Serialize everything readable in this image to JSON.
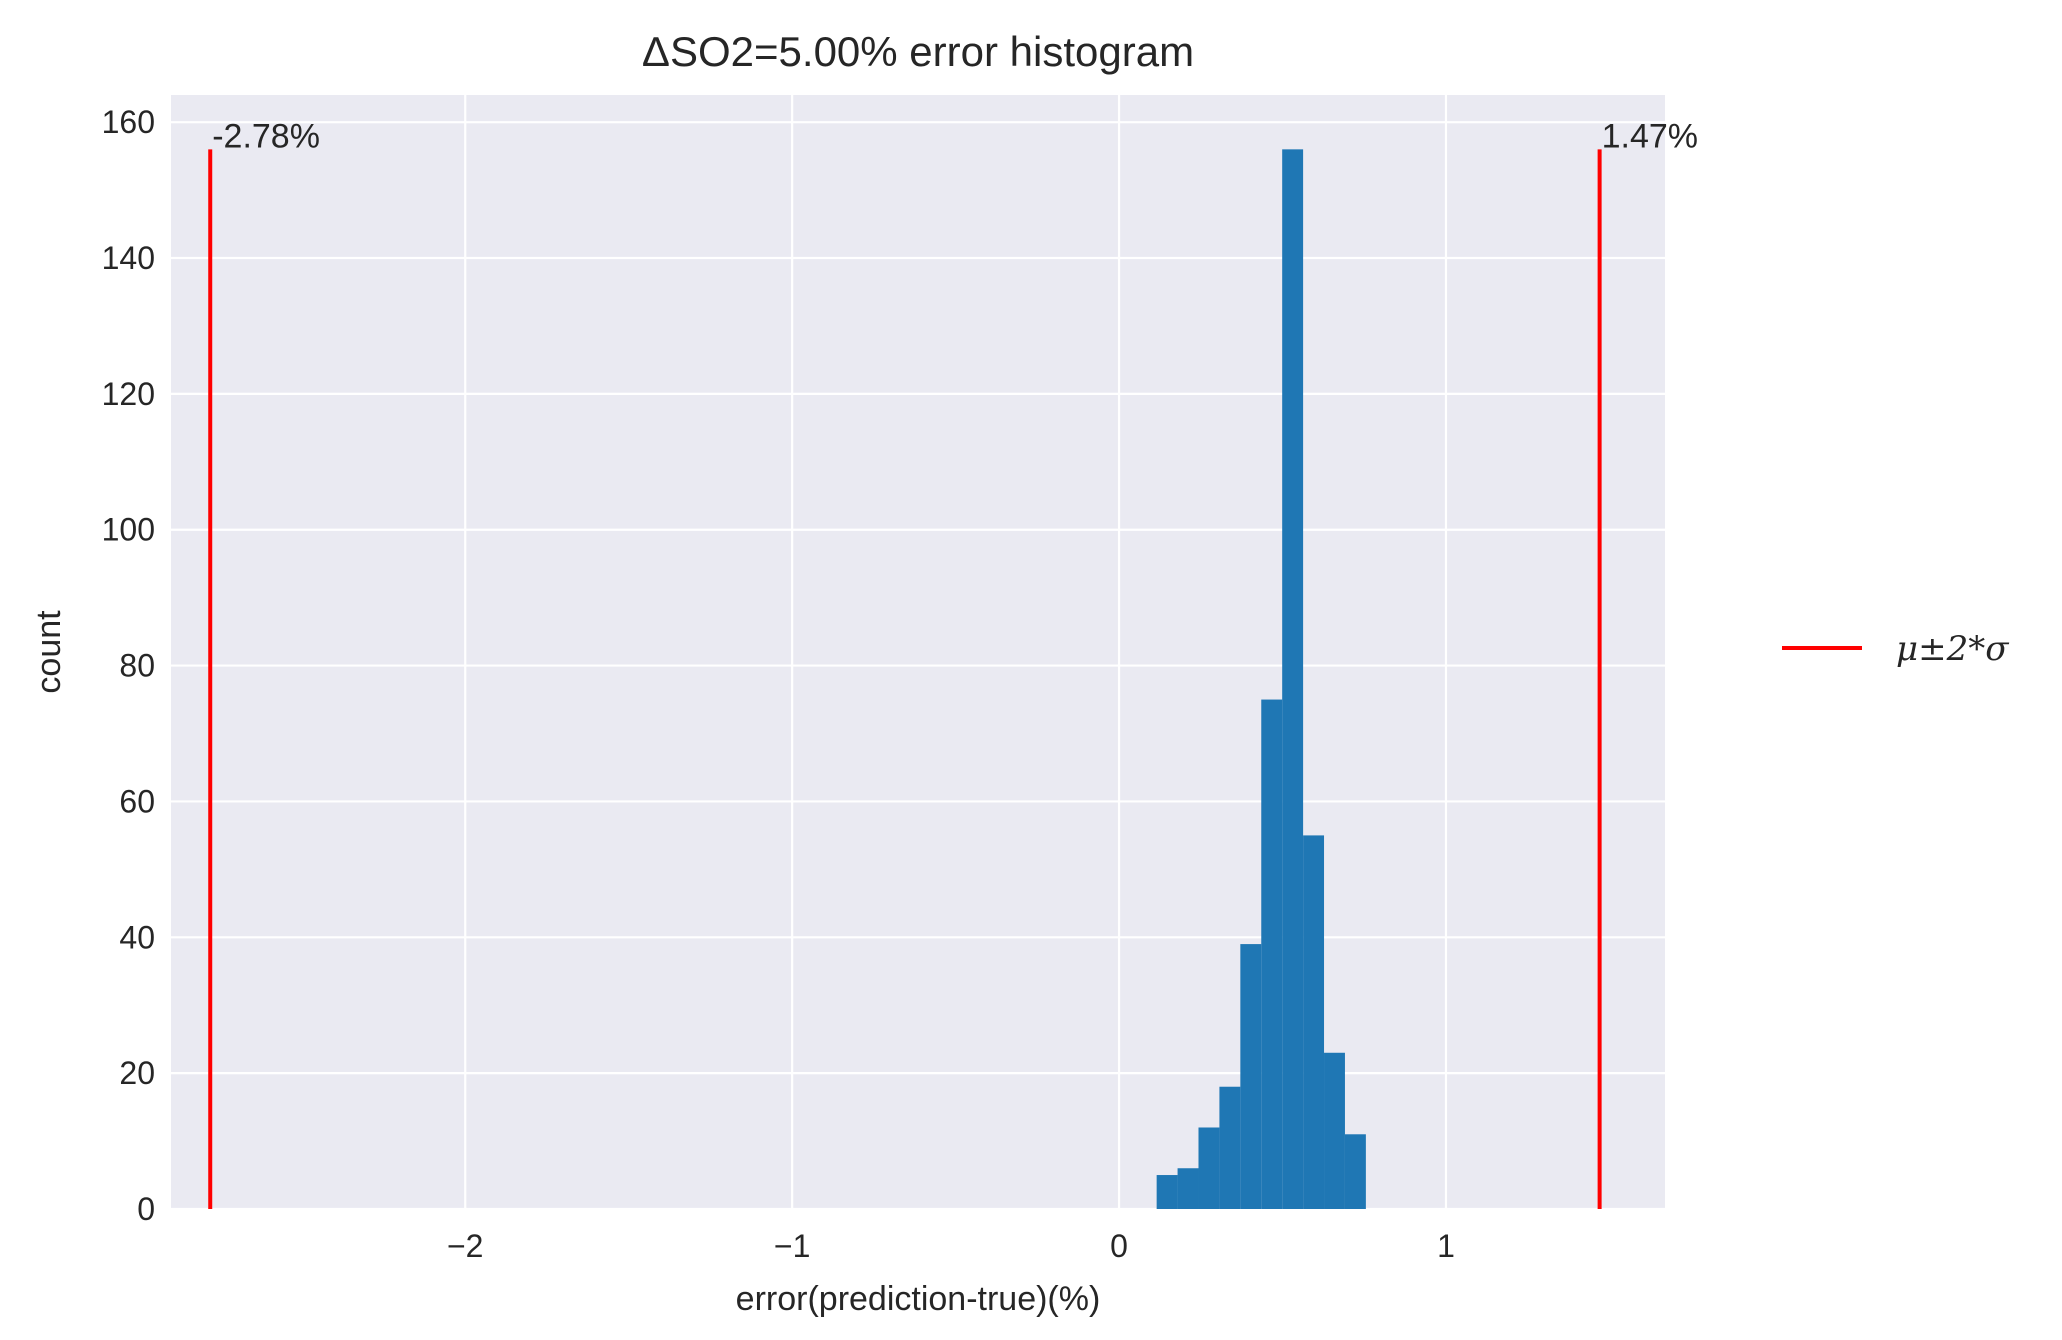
{
  "chart_data": {
    "type": "bar",
    "title": "ΔSO2=5.00% error histogram",
    "xlabel": "error(prediction-true)(%)",
    "ylabel": "count",
    "xlim": [
      -2.9,
      1.67
    ],
    "ylim": [
      0,
      164
    ],
    "grid": true,
    "x_ticks": [
      -2,
      -1,
      0,
      1
    ],
    "x_tick_labels": [
      "−2",
      "−1",
      "0",
      "1"
    ],
    "y_ticks": [
      0,
      20,
      40,
      60,
      80,
      100,
      120,
      140,
      160
    ],
    "y_tick_labels": [
      "0",
      "20",
      "40",
      "60",
      "80",
      "100",
      "120",
      "140",
      "160"
    ],
    "bin_width": 0.064,
    "bins": [
      {
        "left": 0.115,
        "count": 5
      },
      {
        "left": 0.179,
        "count": 6
      },
      {
        "left": 0.243,
        "count": 12
      },
      {
        "left": 0.307,
        "count": 18
      },
      {
        "left": 0.371,
        "count": 39
      },
      {
        "left": 0.435,
        "count": 75
      },
      {
        "left": 0.499,
        "count": 156
      },
      {
        "left": 0.563,
        "count": 55
      },
      {
        "left": 0.627,
        "count": 23
      },
      {
        "left": 0.691,
        "count": 11
      }
    ],
    "bar_color": "#1f77b4",
    "reference_lines": [
      {
        "x": -2.78,
        "top": 156,
        "label": "-2.78%"
      },
      {
        "x": 1.47,
        "top": 156,
        "label": "1.47%"
      }
    ],
    "reference_line_color": "#ff0000",
    "legend": {
      "placement": "right",
      "entries": [
        {
          "label": "μ±2*σ",
          "color": "#ff0000"
        }
      ]
    },
    "background_color": "#eaeaf2",
    "grid_color": "#ffffff"
  }
}
